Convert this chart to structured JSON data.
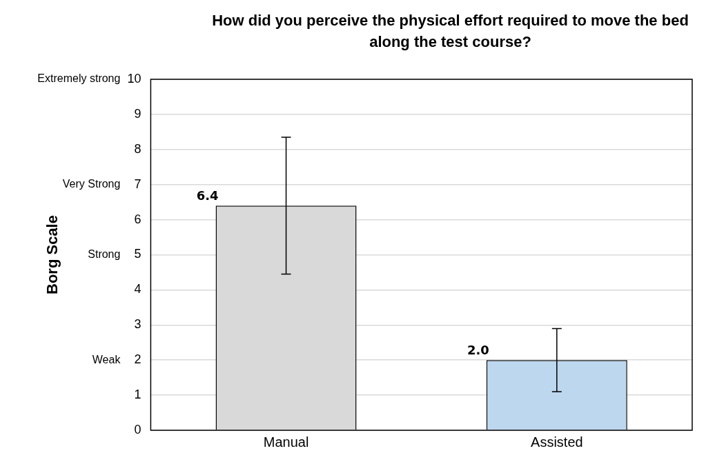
{
  "chart_data": {
    "type": "bar",
    "title": "How did you perceive the physical effort required to move the bed along the test course?",
    "ylabel": "Borg Scale",
    "categories": [
      "Manual",
      "Assisted"
    ],
    "values": [
      6.4,
      2.0
    ],
    "colors": [
      "#d9d9d9",
      "#bdd7ee"
    ],
    "errors": [
      1.95,
      0.9
    ],
    "value_labels": [
      "6.4",
      "2.0"
    ],
    "ylim": [
      0,
      10
    ],
    "yticks": [
      0,
      1,
      2,
      3,
      4,
      5,
      6,
      7,
      8,
      9,
      10
    ],
    "y2_categories": [
      "Extremely strong",
      null,
      null,
      "Very Strong",
      null,
      "Strong",
      null,
      null,
      "Weak",
      null,
      null
    ],
    "grid": "y",
    "legend": false
  }
}
